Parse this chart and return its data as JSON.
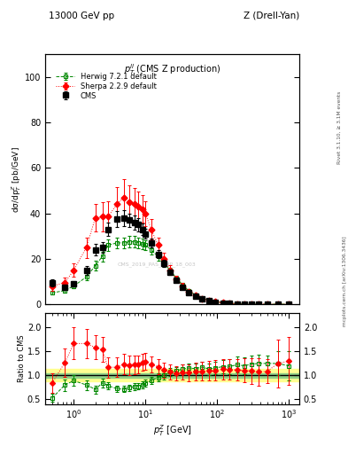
{
  "title_left": "13000 GeV pp",
  "title_right": "Z (Drell-Yan)",
  "plot_title": "$p_T^{ll}$ (CMS Z production)",
  "xlabel": "$p_T^Z$ [GeV]",
  "ylabel_main": "dσ/dp$_T^Z$ [pb/GeV]",
  "ylabel_ratio": "Ratio to CMS",
  "right_label_top": "Rivet 3.1.10, ≥ 3.1M events",
  "right_label_bot": "mcplots.cern.ch [arXiv:1306.3436]",
  "watermark": "CMS_2019_PAS_SMP_18_003",
  "cms_x": [
    0.5,
    0.75,
    1.0,
    1.5,
    2.0,
    2.5,
    3.0,
    4.0,
    5.0,
    6.0,
    7.0,
    8.0,
    9.0,
    10.0,
    12.0,
    15.0,
    18.0,
    22.0,
    27.0,
    33.0,
    40.0,
    50.0,
    62.0,
    77.0,
    95.0,
    120.0,
    150.0,
    190.0,
    240.0,
    300.0,
    380.0,
    500.0,
    700.0,
    1000.0
  ],
  "cms_y": [
    9.5,
    7.5,
    9.0,
    15.0,
    24.0,
    25.0,
    33.0,
    37.5,
    38.0,
    37.0,
    36.0,
    35.0,
    33.0,
    31.0,
    27.0,
    22.0,
    18.0,
    14.0,
    10.5,
    7.5,
    5.2,
    3.5,
    2.3,
    1.5,
    0.95,
    0.55,
    0.32,
    0.18,
    0.1,
    0.055,
    0.028,
    0.012,
    0.004,
    0.001
  ],
  "cms_yerr": [
    1.5,
    1.2,
    1.3,
    2.0,
    2.5,
    2.5,
    3.0,
    3.5,
    3.5,
    3.0,
    3.0,
    2.8,
    2.5,
    2.2,
    2.0,
    1.8,
    1.5,
    1.2,
    0.9,
    0.7,
    0.5,
    0.35,
    0.25,
    0.18,
    0.12,
    0.07,
    0.04,
    0.025,
    0.015,
    0.008,
    0.005,
    0.002,
    0.001,
    0.0003
  ],
  "herwig_x": [
    0.5,
    0.75,
    1.0,
    1.5,
    2.0,
    2.5,
    3.0,
    4.0,
    5.0,
    6.0,
    7.0,
    8.0,
    9.0,
    10.0,
    12.0,
    15.0,
    18.0,
    22.0,
    27.0,
    33.0,
    40.0,
    50.0,
    62.0,
    77.0,
    95.0,
    120.0,
    150.0,
    190.0,
    240.0,
    300.0,
    380.0,
    500.0,
    700.0,
    1000.0
  ],
  "herwig_y": [
    5.0,
    6.0,
    8.0,
    12.0,
    17.0,
    21.0,
    26.0,
    27.0,
    27.0,
    27.5,
    27.5,
    27.0,
    26.5,
    26.0,
    24.0,
    21.0,
    18.0,
    15.0,
    11.5,
    8.5,
    6.0,
    4.0,
    2.7,
    1.7,
    1.1,
    0.65,
    0.38,
    0.22,
    0.12,
    0.068,
    0.035,
    0.015,
    0.005,
    0.0012
  ],
  "herwig_yerr": [
    0.8,
    0.9,
    1.0,
    1.5,
    2.0,
    2.2,
    2.5,
    2.5,
    2.5,
    2.5,
    2.5,
    2.4,
    2.3,
    2.2,
    2.0,
    1.8,
    1.5,
    1.2,
    0.9,
    0.7,
    0.5,
    0.35,
    0.25,
    0.18,
    0.12,
    0.08,
    0.05,
    0.03,
    0.018,
    0.01,
    0.005,
    0.002,
    0.001,
    0.0003
  ],
  "sherpa_x": [
    0.5,
    0.75,
    1.0,
    1.5,
    2.0,
    2.5,
    3.0,
    4.0,
    5.0,
    6.0,
    7.0,
    8.0,
    9.0,
    10.0,
    12.0,
    15.0,
    18.0,
    22.0,
    27.0,
    33.0,
    40.0,
    50.0,
    62.0,
    77.0,
    95.0,
    120.0,
    150.0,
    190.0,
    240.0,
    300.0,
    380.0,
    500.0,
    700.0,
    1000.0
  ],
  "sherpa_y": [
    8.0,
    9.5,
    15.0,
    25.0,
    38.0,
    38.5,
    38.5,
    44.0,
    47.0,
    45.0,
    44.0,
    43.0,
    42.0,
    40.0,
    33.0,
    26.0,
    20.0,
    15.0,
    11.0,
    8.0,
    5.5,
    3.8,
    2.5,
    1.65,
    1.05,
    0.62,
    0.36,
    0.2,
    0.11,
    0.06,
    0.03,
    0.013,
    0.005,
    0.0013
  ],
  "sherpa_yerr": [
    2.0,
    2.2,
    3.0,
    4.5,
    6.0,
    6.5,
    7.0,
    7.5,
    8.0,
    7.5,
    7.0,
    6.5,
    6.0,
    5.5,
    4.5,
    3.5,
    2.8,
    2.2,
    1.6,
    1.2,
    0.9,
    0.65,
    0.45,
    0.3,
    0.2,
    0.12,
    0.07,
    0.04,
    0.025,
    0.015,
    0.008,
    0.003,
    0.002,
    0.0005
  ],
  "cms_color": "black",
  "herwig_color": "#008800",
  "sherpa_color": "red",
  "xlim": [
    0.4,
    1400.0
  ],
  "ylim_main": [
    0,
    110
  ],
  "ylim_ratio": [
    0.4,
    2.3
  ],
  "cms_band_yellow": "#ffff88",
  "cms_band_green": "#88cc88",
  "cms_band_yellow_lo": 0.87,
  "cms_band_yellow_hi": 1.13,
  "cms_band_green_lo": 0.95,
  "cms_band_green_hi": 1.05
}
